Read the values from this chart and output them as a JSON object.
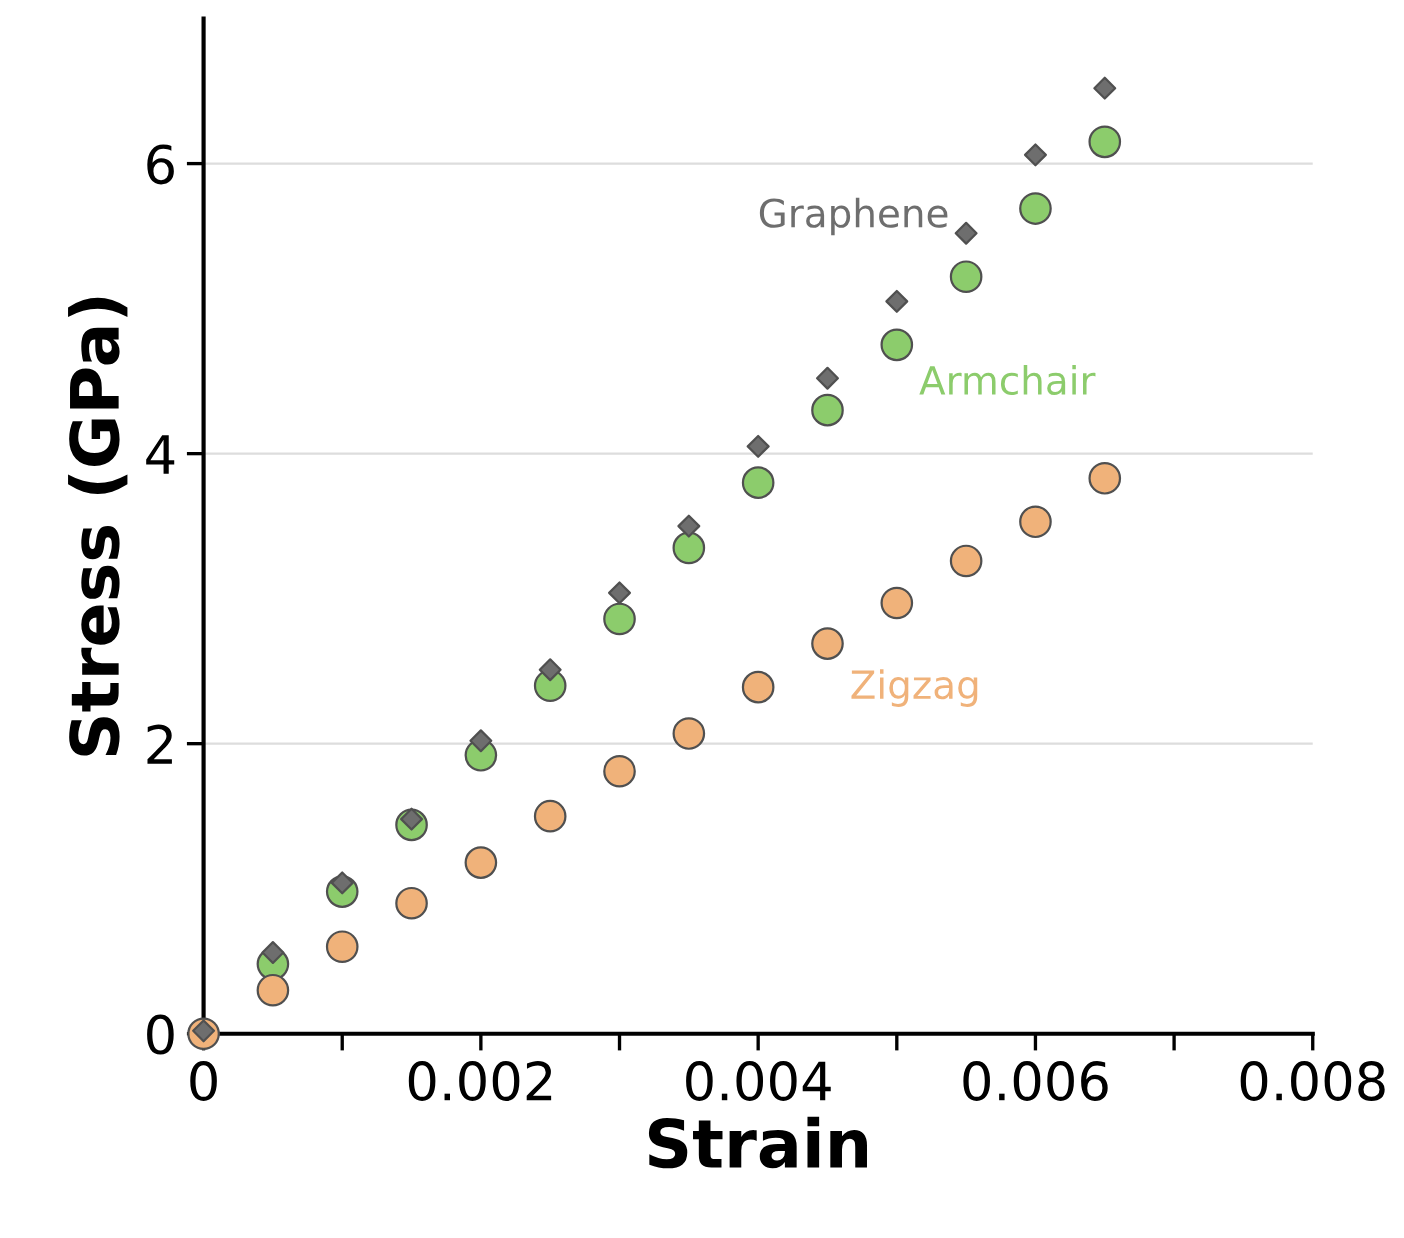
{
  "chart_data": {
    "type": "scatter",
    "xlabel": "Strain",
    "ylabel": "Stress (GPa)",
    "x": [
      0,
      0.0005,
      0.001,
      0.0015,
      0.002,
      0.0025,
      0.003,
      0.0035,
      0.004,
      0.0045,
      0.005,
      0.0055,
      0.006,
      0.0065
    ],
    "series": [
      {
        "name": "Graphene",
        "color": "#6e6e6e",
        "marker": "diamond",
        "values": [
          0.02,
          0.56,
          1.04,
          1.48,
          2.02,
          2.51,
          3.04,
          3.5,
          4.05,
          4.52,
          5.05,
          5.52,
          6.06,
          6.52
        ]
      },
      {
        "name": "Armchair",
        "color": "#8ccc6c",
        "marker": "circle",
        "values": [
          null,
          0.48,
          0.98,
          1.44,
          1.92,
          2.4,
          2.86,
          3.35,
          3.8,
          4.3,
          4.75,
          5.22,
          5.69,
          6.15
        ]
      },
      {
        "name": "Zigzag",
        "color": "#f0b27a",
        "marker": "circle",
        "values": [
          0.0,
          0.3,
          0.6,
          0.9,
          1.18,
          1.5,
          1.81,
          2.07,
          2.39,
          2.69,
          2.97,
          3.26,
          3.53,
          3.83
        ]
      }
    ],
    "xlim": [
      0,
      0.008
    ],
    "ylim": [
      0,
      7
    ],
    "xticks": [
      0,
      {
        "value": 0.001,
        "label": null
      },
      0.002,
      {
        "value": 0.003,
        "label": null
      },
      0.004,
      {
        "value": 0.005,
        "label": null
      },
      0.006,
      {
        "value": 0.007,
        "label": null
      },
      0.008
    ],
    "yticks": [
      0,
      2,
      4,
      6
    ],
    "grid": "y"
  }
}
